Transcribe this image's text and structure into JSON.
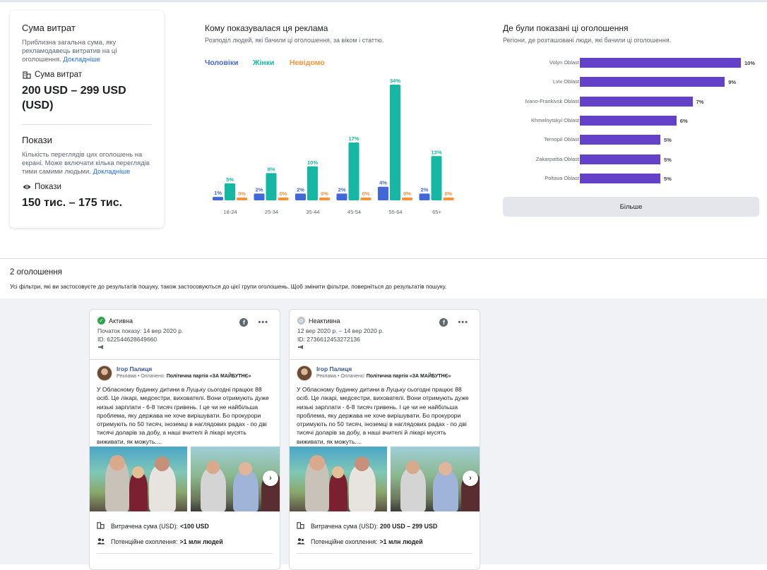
{
  "spend": {
    "title": "Сума витрат",
    "desc": "Приблизна загальна сума, яку рекламодавець витратив на ці оголошення.",
    "more": "Докладніше",
    "label": "Сума витрат",
    "value": "200 USD – 299 USD (USD)",
    "icon": "coins-icon"
  },
  "impressions": {
    "title": "Покази",
    "desc": "Кількість переглядів цих оголошень на екрані. Може включати кілька переглядів тими самими людьми.",
    "more": "Докладніше",
    "label": "Покази",
    "value": "150 тис. – 175 тис.",
    "icon": "eye-icon"
  },
  "who": {
    "title": "Кому показувалася ця реклама",
    "subtitle": "Розподіл людей, які бачили ці оголошення, за віком і статтю."
  },
  "chart_data": {
    "type": "bar",
    "categories": [
      "18-24",
      "25-34",
      "35-44",
      "45-54",
      "55-64",
      "65+"
    ],
    "series": [
      {
        "name": "Чоловіки",
        "color": "#4267d8",
        "values": [
          1,
          2,
          2,
          2,
          4,
          2
        ],
        "labels": [
          "1%",
          "2%",
          "2%",
          "2%",
          "4%",
          "2%"
        ]
      },
      {
        "name": "Жінки",
        "color": "#16b8a4",
        "values": [
          5,
          8,
          10,
          17,
          34,
          13
        ],
        "labels": [
          "5%",
          "8%",
          "10%",
          "17%",
          "34%",
          "13%"
        ]
      },
      {
        "name": "Невідомо",
        "color": "#f5933a",
        "values": [
          0,
          0,
          0,
          0,
          0,
          0
        ],
        "labels": [
          "0%",
          "0%",
          "0%",
          "0%",
          "0%",
          "0%"
        ]
      }
    ],
    "ylim": [
      0,
      34
    ]
  },
  "where": {
    "title": "Де були показані ці оголошення",
    "subtitle": "Регіони, де розташовані люди, які бачили ці оголошення.",
    "regions": [
      {
        "name": "Volyn Oblast",
        "value": 10,
        "label": "10%"
      },
      {
        "name": "Lviv Oblast",
        "value": 9,
        "label": "9%"
      },
      {
        "name": "Ivano-Frankivsk Oblast",
        "value": 7,
        "label": "7%"
      },
      {
        "name": "Khmelnytskyi Oblast",
        "value": 6,
        "label": "6%"
      },
      {
        "name": "Ternopil Oblast",
        "value": 5,
        "label": "5%"
      },
      {
        "name": "Zakarpattia Oblast",
        "value": 5,
        "label": "5%"
      },
      {
        "name": "Poltava Oblast",
        "value": 5,
        "label": "5%"
      }
    ],
    "region_color": "#6341c9",
    "more_button": "Більше"
  },
  "results": {
    "count": "2 оголошення",
    "note": "Усі фільтри, які ви застосовуєте до результатів пошуку, також застосовуються до цієї групи оголошень. Щоб змінити фільтри, поверніться до результатів пошуку."
  },
  "ads": [
    {
      "status": "Активна",
      "status_color": "#31a24c",
      "dates": "Початок показу: 14 вер 2020 р.",
      "id": "ID: 622544628649660",
      "page": "Ігор Палиця",
      "sponsor_prefix": "Реклама • Оплачено:",
      "sponsor": "Політична партія «ЗА МАЙБУТНЄ»",
      "text": "У Обласному будинку дитини в Луцьку сьогодні працює 88 осіб. Це лікарі, медсестри, вихователі. Вони отримують дуже низькі зарплати - 6-8 тисяч гривень. І це чи не найбільша проблема, яку держава не хоче вирішувати. Бо прокурори отримують по 50 тисяч, іноземці в наглядових радах - по дві тисячі доларів за добу, а наші вчителі й лікарі мусять виживати, як можуть....",
      "spend_label": "Витрачена сума (USD):",
      "spend_value": "<100 USD",
      "reach_label": "Потенційне охоплення:",
      "reach_value": ">1 млн людей"
    },
    {
      "status": "Неактивна",
      "status_color": "#bec3c9",
      "dates": "12 вер 2020 р. – 14 вер 2020 р.",
      "id": "ID: 2736612453272136",
      "page": "Ігор Палиця",
      "sponsor_prefix": "Реклама • Оплачено:",
      "sponsor": "Політична партія «ЗА МАЙБУТНЄ»",
      "text": "У Обласному будинку дитини в Луцьку сьогодні працює 88 осіб. Це лікарі, медсестри, вихователі. Вони отримують дуже низькі зарплати - 6-8 тисяч гривень. І це чи не найбільша проблема, яку держава не хоче вирішувати. Бо прокурори отримують по 50 тисяч, іноземці в наглядових радах - по дві тисячі доларів за добу, а наші вчителі й лікарі мусять виживати, як можуть....",
      "spend_label": "Витрачена сума (USD):",
      "spend_value": "200 USD – 299 USD",
      "reach_label": "Потенційне охоплення:",
      "reach_value": ">1 млн людей"
    }
  ]
}
